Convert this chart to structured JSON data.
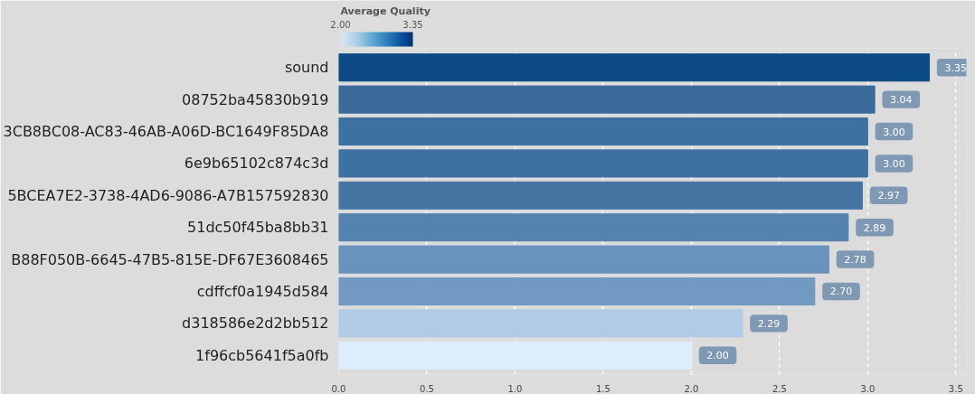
{
  "chart_data": {
    "type": "bar",
    "orientation": "horizontal",
    "clabel": "Average Quality",
    "clim": [
      2.0,
      3.35
    ],
    "cticks": [
      {
        "value": 2.0,
        "label": "2.00"
      },
      {
        "value": 3.35,
        "label": "3.35"
      }
    ],
    "categories": [
      "sound",
      "08752ba45830b919",
      "3CB8BC08-AC83-46AB-A06D-BC1649F85DA8",
      "6e9b65102c874c3d",
      "5BCEA7E2-3738-4AD6-9086-A7B157592830",
      "51dc50f45ba8bb31",
      "B88F050B-6645-47B5-815E-DF67E3608465",
      "cdffcf0a1945d584",
      "d318586e2d2bb512",
      "1f96cb5641f5a0fb"
    ],
    "values": [
      3.35,
      3.04,
      3.0,
      3.0,
      2.97,
      2.89,
      2.78,
      2.7,
      2.29,
      2.0
    ],
    "colors": [
      "#0b4a82",
      "#3b6b9b",
      "#3e70a0",
      "#3e70a0",
      "#4574a3",
      "#5583af",
      "#6993bc",
      "#7199c1",
      "#b0cbe5",
      "#ddeeff"
    ],
    "xlim": [
      0,
      3.56
    ],
    "xticks": [
      {
        "value": 0,
        "label": "0.0"
      },
      0.5,
      {
        "value": 1,
        "label": "1.0"
      },
      1.5,
      {
        "value": 2,
        "label": "2.0"
      },
      2.5,
      {
        "value": 3,
        "label": "3.0"
      },
      3.5
    ],
    "value_labels": [
      "3.35",
      "3.04",
      "3.00",
      "3.00",
      "2.97",
      "2.89",
      "2.78",
      "2.70",
      "2.29",
      "2.00"
    ],
    "grid": "x"
  }
}
